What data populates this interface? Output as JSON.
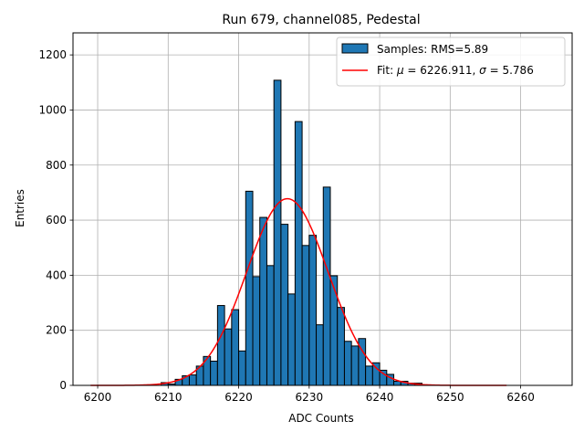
{
  "chart_data": {
    "type": "bar",
    "title": "Run 679, channel085, Pedestal",
    "xlabel": "ADC Counts",
    "ylabel": "Entries",
    "xlim": [
      6196.5,
      6267.3
    ],
    "ylim": [
      0,
      1280
    ],
    "grid": true,
    "legend_position": "upper right",
    "xticks": [
      6200,
      6210,
      6220,
      6230,
      6240,
      6250,
      6260
    ],
    "yticks": [
      0,
      200,
      400,
      600,
      800,
      1000,
      1200
    ],
    "histogram": {
      "name": "Samples: RMS=5.89",
      "color": "#1f77b4",
      "edgecolor": "#000000",
      "bin_width": 1,
      "bins": [
        {
          "x": 6209,
          "count": 10
        },
        {
          "x": 6210,
          "count": 5
        },
        {
          "x": 6211,
          "count": 22
        },
        {
          "x": 6212,
          "count": 35
        },
        {
          "x": 6213,
          "count": 38
        },
        {
          "x": 6214,
          "count": 70
        },
        {
          "x": 6215,
          "count": 105
        },
        {
          "x": 6216,
          "count": 88
        },
        {
          "x": 6217,
          "count": 290
        },
        {
          "x": 6218,
          "count": 205
        },
        {
          "x": 6219,
          "count": 275
        },
        {
          "x": 6220,
          "count": 125
        },
        {
          "x": 6221,
          "count": 705
        },
        {
          "x": 6222,
          "count": 395
        },
        {
          "x": 6223,
          "count": 610
        },
        {
          "x": 6224,
          "count": 435
        },
        {
          "x": 6225,
          "count": 1108
        },
        {
          "x": 6226,
          "count": 585
        },
        {
          "x": 6227,
          "count": 332
        },
        {
          "x": 6228,
          "count": 958
        },
        {
          "x": 6229,
          "count": 508
        },
        {
          "x": 6230,
          "count": 545
        },
        {
          "x": 6231,
          "count": 220
        },
        {
          "x": 6232,
          "count": 720
        },
        {
          "x": 6233,
          "count": 398
        },
        {
          "x": 6234,
          "count": 283
        },
        {
          "x": 6235,
          "count": 160
        },
        {
          "x": 6236,
          "count": 143
        },
        {
          "x": 6237,
          "count": 170
        },
        {
          "x": 6238,
          "count": 70
        },
        {
          "x": 6239,
          "count": 82
        },
        {
          "x": 6240,
          "count": 55
        },
        {
          "x": 6241,
          "count": 40
        },
        {
          "x": 6242,
          "count": 15
        },
        {
          "x": 6243,
          "count": 15
        },
        {
          "x": 6244,
          "count": 8
        },
        {
          "x": 6245,
          "count": 8
        }
      ]
    },
    "fit": {
      "type": "gaussian",
      "label_prefix": "Fit: ",
      "mu_symbol": "μ",
      "mu_value": "6226.911",
      "sigma_symbol": "σ",
      "sigma_value": "5.786",
      "mu": 6226.911,
      "sigma": 5.786,
      "amplitude": 678,
      "x_range": [
        6199,
        6258
      ],
      "color": "#ff0000"
    }
  }
}
